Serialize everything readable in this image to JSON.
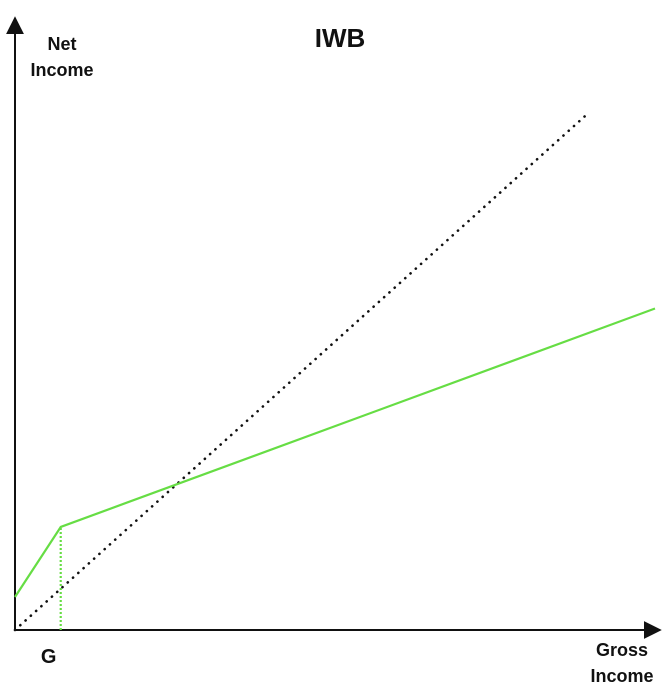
{
  "chart_data": {
    "type": "line",
    "title": "IWB",
    "ylabel_lines": [
      "Net",
      "Income"
    ],
    "xlabel_lines": [
      "Gross",
      "Income"
    ],
    "xticks": [
      {
        "label": "G",
        "x": 0.1
      }
    ],
    "xlim": [
      0,
      1.4
    ],
    "ylim": [
      0,
      1.4
    ],
    "series": [
      {
        "style": "dotted",
        "color": "#111111",
        "points": [
          [
            0,
            0
          ],
          [
            1.25,
            1.25
          ]
        ]
      },
      {
        "style": "solid",
        "color": "#66dd44",
        "points": [
          [
            0,
            0.08
          ],
          [
            0.1,
            0.25
          ],
          [
            1.4,
            0.78
          ]
        ]
      }
    ],
    "markers": [
      {
        "style": "dotted",
        "color": "#66dd44",
        "x": 0.1,
        "y_from": 0,
        "y_to": 0.25
      }
    ],
    "grid": false,
    "legend": "none"
  }
}
